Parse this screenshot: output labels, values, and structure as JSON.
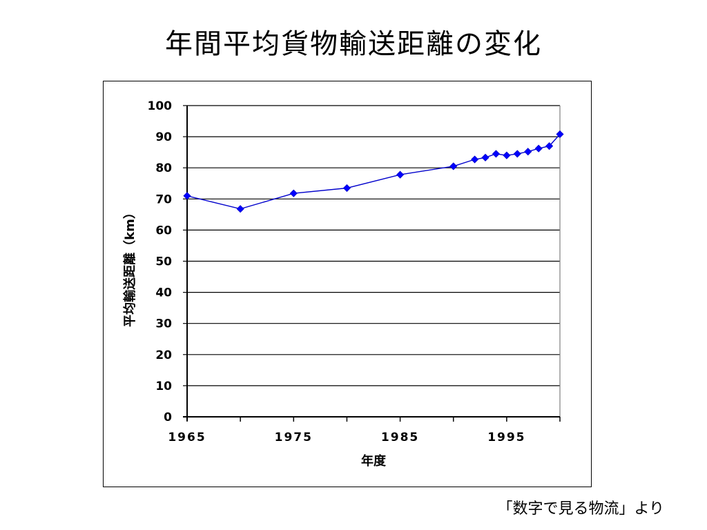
{
  "slide": {
    "title": "年間平均貨物輸送距離の変化",
    "source": "「数字で見る物流」より"
  },
  "chart_data": {
    "type": "line",
    "title": "",
    "xlabel": "年度",
    "ylabel": "平均輸送距離（km）",
    "xlim": [
      1965,
      2000
    ],
    "ylim": [
      0,
      100
    ],
    "x_ticks": [
      1965,
      1975,
      1985,
      1995
    ],
    "y_ticks": [
      0,
      10,
      20,
      30,
      40,
      50,
      60,
      70,
      80,
      90,
      100
    ],
    "grid": true,
    "legend": "none",
    "marker": "diamond",
    "line_color": "#0000CC",
    "marker_color": "#0000FF",
    "series": [
      {
        "x": [
          1965,
          1970,
          1975,
          1980,
          1985,
          1990,
          1992,
          1993,
          1994,
          1995,
          1996,
          1997,
          1998,
          1999,
          2000
        ],
        "y": [
          71,
          66.8,
          71.8,
          73.5,
          77.8,
          80.5,
          82.7,
          83.3,
          84.5,
          84,
          84.5,
          85.2,
          86.2,
          87,
          90.8
        ]
      }
    ]
  }
}
